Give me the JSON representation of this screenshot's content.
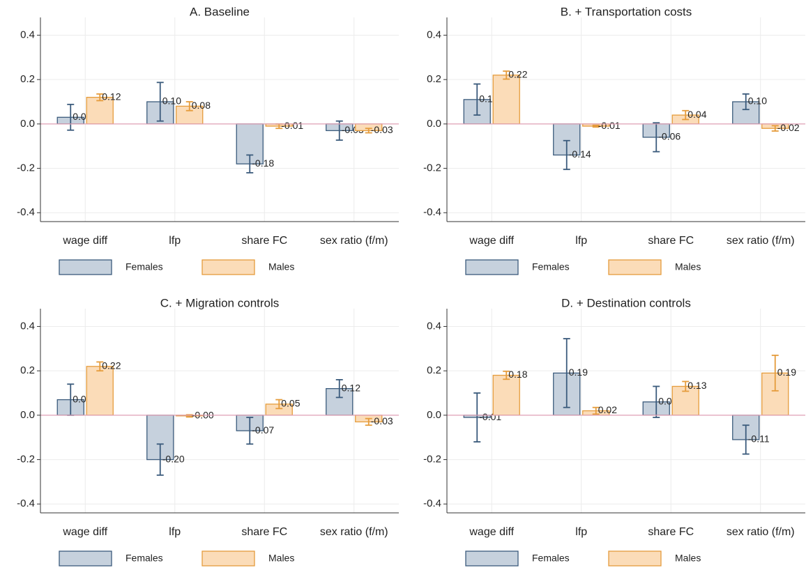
{
  "chart_data": [
    {
      "type": "bar",
      "title": "A. Baseline",
      "categories": [
        "wage diff",
        "lfp",
        "share FC",
        "sex ratio (f/m)"
      ],
      "series": [
        {
          "name": "Females",
          "color": "#c6d1dd",
          "edge": "#3b5b7c",
          "values": [
            0.03,
            0.1,
            -0.18,
            -0.03
          ],
          "value_labels": [
            "0.03",
            "0.10",
            "-0.18",
            "-0.03"
          ],
          "errors": [
            0.058,
            0.087,
            0.04,
            0.043
          ]
        },
        {
          "name": "Males",
          "color": "#fbdcb8",
          "edge": "#e59c3c",
          "values": [
            0.12,
            0.08,
            -0.01,
            -0.03
          ],
          "value_labels": [
            "0.12",
            "0.08",
            "-0.01",
            "-0.03"
          ],
          "errors": [
            0.015,
            0.02,
            0.01,
            0.01
          ]
        }
      ],
      "ylim": [
        -0.44,
        0.48
      ],
      "yticks": [
        {
          "value": -0.4,
          "label": "-0.4"
        },
        {
          "value": -0.2,
          "label": "-0.2"
        },
        {
          "value": 0,
          "label": "0.0"
        },
        {
          "value": 0.2,
          "label": "0.2"
        },
        {
          "value": 0.4,
          "label": "0.4"
        }
      ],
      "grid": true,
      "legend": "bottom"
    },
    {
      "type": "bar",
      "title": "B. + Transportation costs",
      "categories": [
        "wage diff",
        "lfp",
        "share FC",
        "sex ratio (f/m)"
      ],
      "series": [
        {
          "name": "Females",
          "color": "#c6d1dd",
          "edge": "#3b5b7c",
          "values": [
            0.11,
            -0.14,
            -0.06,
            0.1
          ],
          "value_labels": [
            "0.11",
            "-0.14",
            "-0.06",
            "0.10"
          ],
          "errors": [
            0.07,
            0.065,
            0.065,
            0.035
          ]
        },
        {
          "name": "Males",
          "color": "#fbdcb8",
          "edge": "#e59c3c",
          "values": [
            0.22,
            -0.01,
            0.04,
            -0.02
          ],
          "value_labels": [
            "0.22",
            "-0.01",
            "0.04",
            "-0.02"
          ],
          "errors": [
            0.018,
            0.004,
            0.02,
            0.012
          ]
        }
      ],
      "ylim": [
        -0.44,
        0.48
      ],
      "yticks": [
        {
          "value": -0.4,
          "label": "-0.4"
        },
        {
          "value": -0.2,
          "label": "-0.2"
        },
        {
          "value": 0,
          "label": "0.0"
        },
        {
          "value": 0.2,
          "label": "0.2"
        },
        {
          "value": 0.4,
          "label": "0.4"
        }
      ],
      "grid": true,
      "legend": "bottom"
    },
    {
      "type": "bar",
      "title": "C. + Migration controls",
      "categories": [
        "wage diff",
        "lfp",
        "share FC",
        "sex ratio (f/m)"
      ],
      "series": [
        {
          "name": "Females",
          "color": "#c6d1dd",
          "edge": "#3b5b7c",
          "values": [
            0.07,
            -0.2,
            -0.07,
            0.12
          ],
          "value_labels": [
            "0.07",
            "-0.20",
            "-0.07",
            "0.12"
          ],
          "errors": [
            0.07,
            0.07,
            0.06,
            0.04
          ]
        },
        {
          "name": "Males",
          "color": "#fbdcb8",
          "edge": "#e59c3c",
          "values": [
            0.22,
            -0.003,
            0.05,
            -0.03
          ],
          "value_labels": [
            "0.22",
            "-0.00",
            "0.05",
            "-0.03"
          ],
          "errors": [
            0.02,
            0.005,
            0.02,
            0.015
          ]
        }
      ],
      "ylim": [
        -0.44,
        0.48
      ],
      "yticks": [
        {
          "value": -0.4,
          "label": "-0.4"
        },
        {
          "value": -0.2,
          "label": "-0.2"
        },
        {
          "value": 0,
          "label": "0.0"
        },
        {
          "value": 0.2,
          "label": "0.2"
        },
        {
          "value": 0.4,
          "label": "0.4"
        }
      ],
      "grid": true,
      "legend": "bottom"
    },
    {
      "type": "bar",
      "title": "D. + Destination controls",
      "categories": [
        "wage diff",
        "lfp",
        "share FC",
        "sex ratio (f/m)"
      ],
      "series": [
        {
          "name": "Females",
          "color": "#c6d1dd",
          "edge": "#3b5b7c",
          "values": [
            -0.01,
            0.19,
            0.06,
            -0.11
          ],
          "value_labels": [
            "-0.01",
            "0.19",
            "0.06",
            "-0.11"
          ],
          "errors": [
            0.11,
            0.155,
            0.07,
            0.065
          ]
        },
        {
          "name": "Males",
          "color": "#fbdcb8",
          "edge": "#e59c3c",
          "values": [
            0.18,
            0.02,
            0.13,
            0.19
          ],
          "value_labels": [
            "0.18",
            "0.02",
            "0.13",
            "0.19"
          ],
          "errors": [
            0.018,
            0.015,
            0.022,
            0.08
          ]
        }
      ],
      "ylim": [
        -0.44,
        0.48
      ],
      "yticks": [
        {
          "value": -0.4,
          "label": "-0.4"
        },
        {
          "value": -0.2,
          "label": "-0.2"
        },
        {
          "value": 0,
          "label": "0.0"
        },
        {
          "value": 0.2,
          "label": "0.2"
        },
        {
          "value": 0.4,
          "label": "0.4"
        }
      ],
      "grid": true,
      "legend": "bottom"
    }
  ]
}
